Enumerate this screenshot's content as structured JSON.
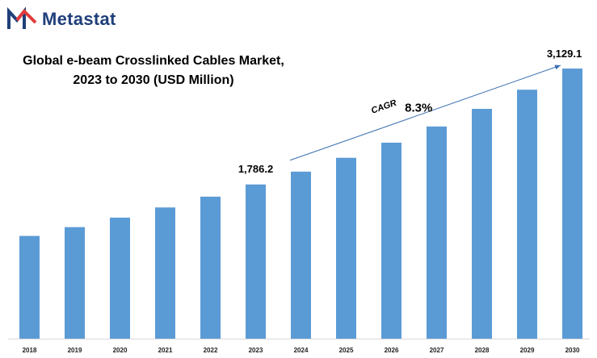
{
  "brand": {
    "name": "Metastat",
    "primary_color": "#1f3f7a",
    "accent_color": "#e23c3c"
  },
  "title_line1": "Global e-beam Crosslinked Cables Market,",
  "title_line2": "2023 to 2030 (USD Million)",
  "chart_data": {
    "type": "bar",
    "categories": [
      "2018",
      "2019",
      "2020",
      "2021",
      "2022",
      "2023",
      "2024",
      "2025",
      "2026",
      "2027",
      "2028",
      "2029",
      "2030"
    ],
    "values": [
      1190,
      1292,
      1402,
      1520,
      1645,
      1786.2,
      1935,
      2095,
      2270,
      2458,
      2662,
      2884,
      3129.1
    ],
    "bar_color": "#5b9bd5",
    "data_labels": [
      {
        "category": "2023",
        "text": "1,786.2"
      },
      {
        "category": "2030",
        "text": "3,129.1"
      }
    ],
    "annotation": {
      "label": "CAGR",
      "value": "8.3%",
      "from": "2023",
      "to": "2030",
      "arrow_color": "#3a6fb0"
    },
    "ylim": [
      0,
      3129.1
    ],
    "xlabel": "",
    "ylabel": "",
    "grid": false,
    "legend": "none"
  }
}
